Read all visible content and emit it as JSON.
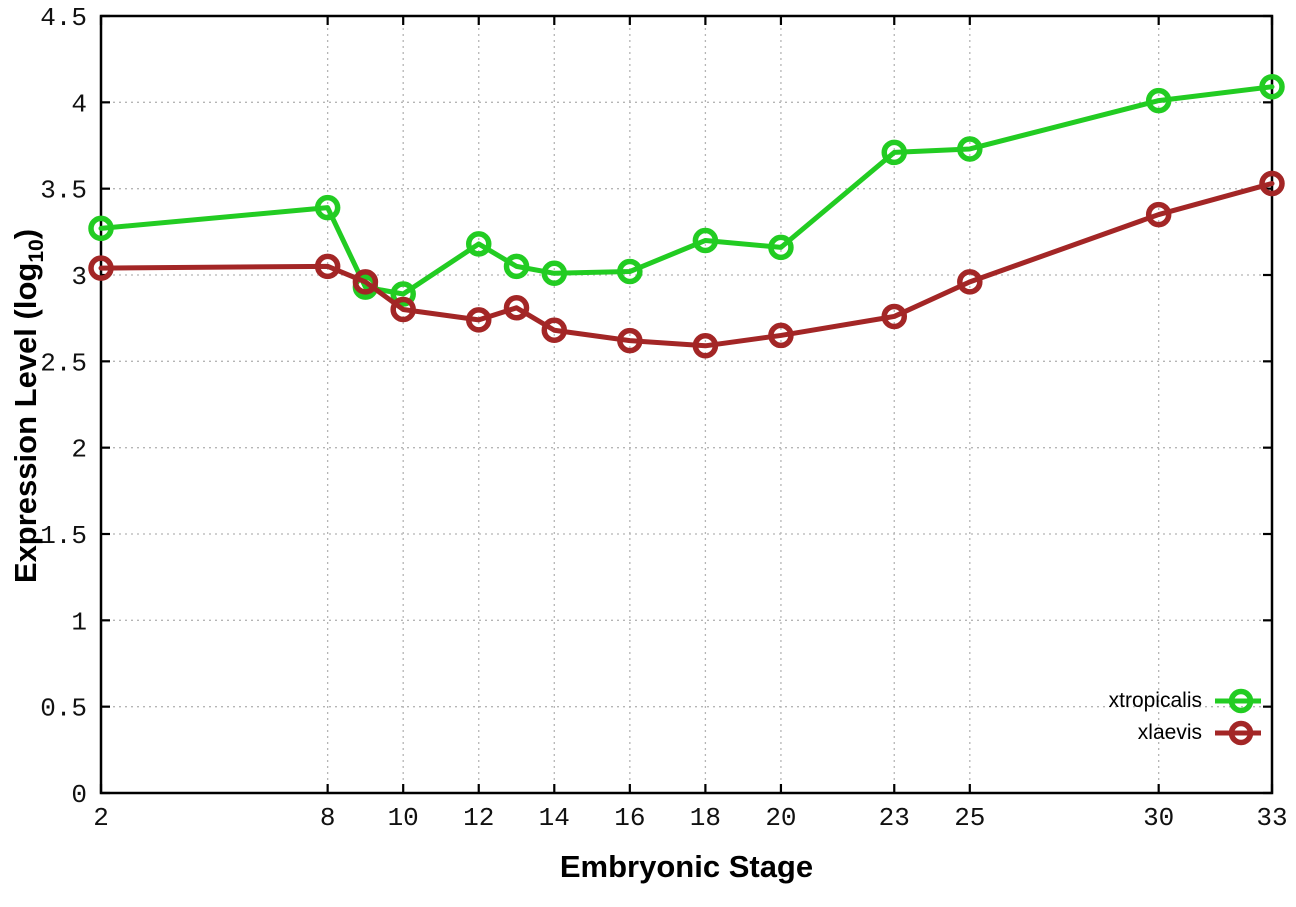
{
  "chart_data": {
    "type": "line",
    "title": "",
    "xlabel": "Embryonic Stage",
    "ylabel": "Expression Level (log10)",
    "ylabel_parts": {
      "main": "Expression Level (log",
      "sub": "10",
      "close": ")"
    },
    "x": [
      2,
      8,
      9,
      10,
      12,
      13,
      14,
      16,
      18,
      20,
      23,
      25,
      30,
      33
    ],
    "series": [
      {
        "name": "xtropicalis",
        "color": "#22cc22",
        "values": [
          3.27,
          3.39,
          2.93,
          2.89,
          3.18,
          3.05,
          3.01,
          3.02,
          3.2,
          3.16,
          3.71,
          3.73,
          4.01,
          4.09
        ]
      },
      {
        "name": "xlaevis",
        "color": "#a32626",
        "values": [
          3.04,
          3.05,
          2.96,
          2.8,
          2.74,
          2.81,
          2.68,
          2.62,
          2.59,
          2.65,
          2.76,
          2.96,
          3.35,
          3.53
        ]
      }
    ],
    "xlim": [
      2,
      33
    ],
    "ylim": [
      0,
      4.5
    ],
    "xticks": [
      2,
      8,
      10,
      12,
      14,
      16,
      18,
      20,
      23,
      25,
      30,
      33
    ],
    "xtick_labels": [
      "2",
      "8",
      "10",
      "12",
      "14",
      "16",
      "18",
      "20",
      "23",
      "25",
      "30",
      "33"
    ],
    "yticks": [
      0,
      0.5,
      1,
      1.5,
      2,
      2.5,
      3,
      3.5,
      4,
      4.5
    ],
    "ytick_labels": [
      "0",
      "0.5",
      "1",
      "1.5",
      "2",
      "2.5",
      "3",
      "3.5",
      "4",
      "4.5"
    ],
    "grid": true,
    "legend_position": "bottom-right",
    "marker": "open-circle"
  },
  "colors": {
    "background": "#ffffff",
    "border": "#000000",
    "grid": "#b5b5b5",
    "tick_text": "#111111",
    "series_green": "#22cc22",
    "series_red": "#a32626"
  }
}
